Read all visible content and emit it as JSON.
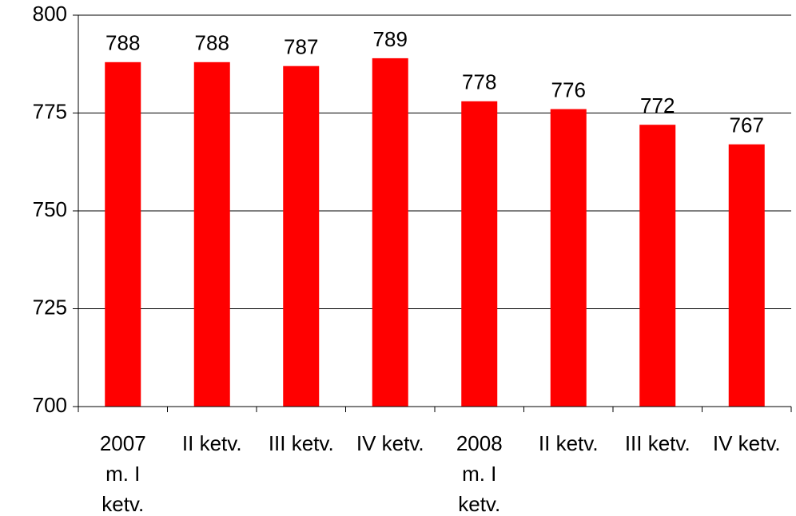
{
  "chart_data": {
    "type": "bar",
    "categories": [
      "2007\nm. I\nketv.",
      "II ketv.",
      "III ketv.",
      "IV ketv.",
      "2008\nm. I\nketv.",
      "II ketv.",
      "III ketv.",
      "IV ketv."
    ],
    "values": [
      788,
      788,
      787,
      789,
      778,
      776,
      772,
      767
    ],
    "color": "#ff0000",
    "ylim": [
      700,
      800
    ],
    "yticks": [
      700,
      725,
      750,
      775,
      800
    ],
    "grid": true
  }
}
